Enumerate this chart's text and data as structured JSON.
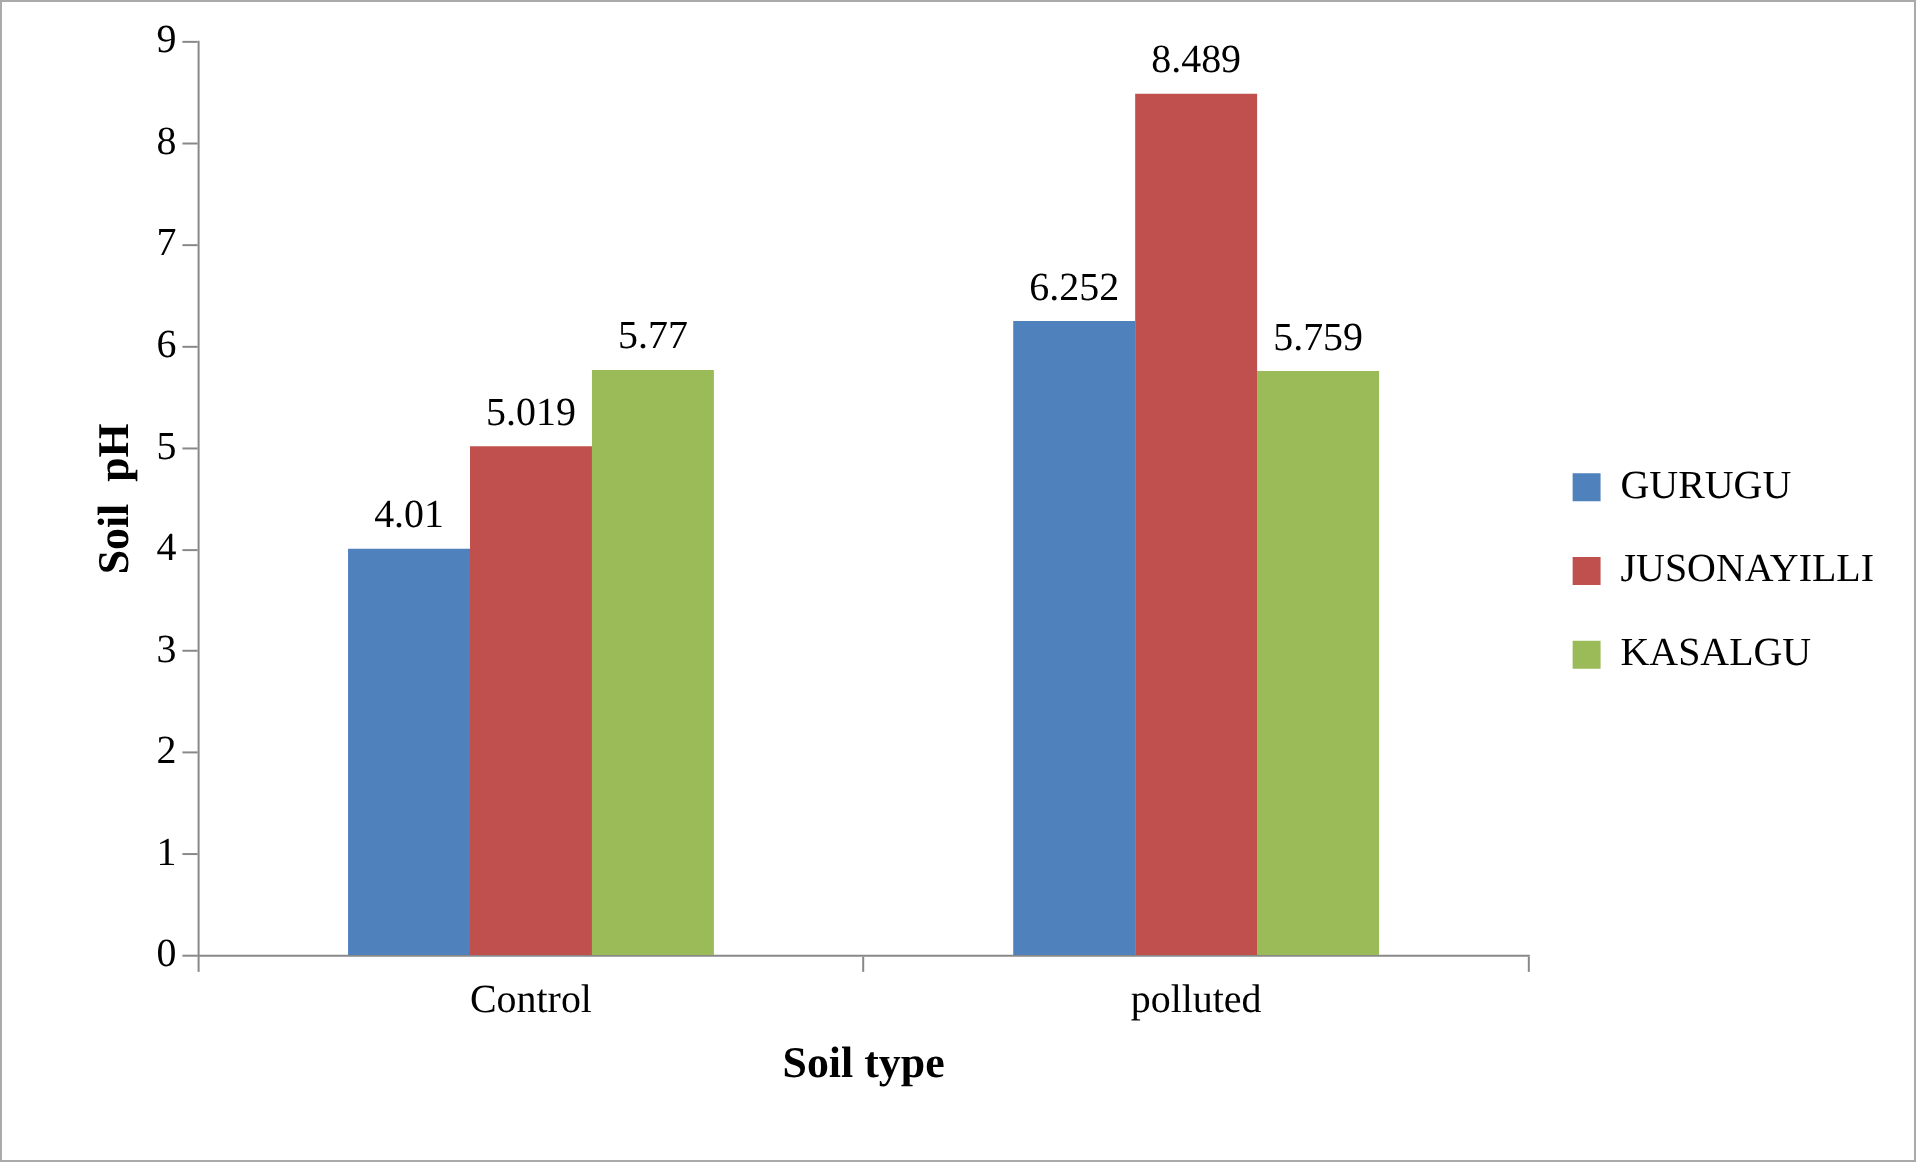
{
  "chart_data": {
    "type": "bar",
    "xlabel": "Soil type",
    "ylabel": "Soil  pH",
    "categories": [
      "Control",
      "polluted"
    ],
    "series": [
      {
        "name": "GURUGU",
        "color": "#4f81bd",
        "values": [
          4.01,
          6.252
        ]
      },
      {
        "name": "JUSONAYILLI",
        "color": "#c0504d",
        "values": [
          5.019,
          8.489
        ]
      },
      {
        "name": "KASALGU",
        "color": "#9bbb59",
        "values": [
          5.77,
          5.759
        ]
      }
    ],
    "ylim": [
      0,
      9
    ],
    "yticks": [
      0,
      1,
      2,
      3,
      4,
      5,
      6,
      7,
      8,
      9
    ],
    "grid": false,
    "legend": "right",
    "data_labels": true
  }
}
